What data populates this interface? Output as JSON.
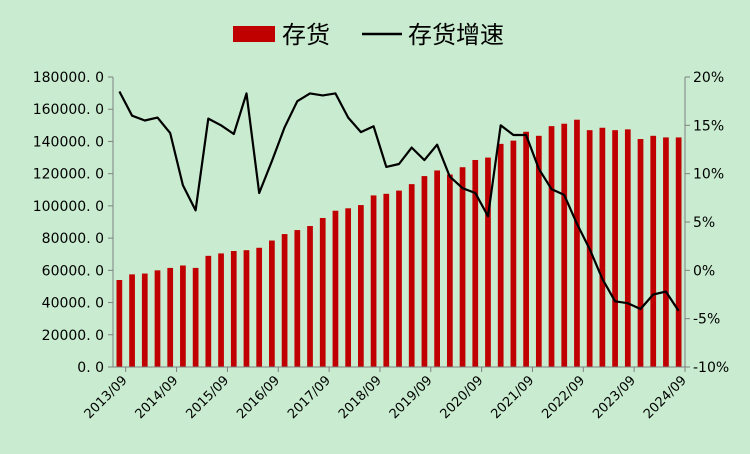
{
  "chart_data": {
    "type": "bar+line",
    "title": "",
    "legend": {
      "position": "top",
      "items": [
        {
          "label": "存货",
          "kind": "bar",
          "color": "#c00000"
        },
        {
          "label": "存货增速",
          "kind": "line",
          "color": "#000000"
        }
      ]
    },
    "x_tick_labels": [
      "2013/09",
      "2014/09",
      "2015/09",
      "2016/09",
      "2017/09",
      "2018/09",
      "2019/09",
      "2020/09",
      "2021/09",
      "2022/09",
      "2023/09",
      "2024/09"
    ],
    "x_tick_index": [
      0,
      4,
      8,
      12,
      16,
      20,
      24,
      28,
      32,
      36,
      40,
      44
    ],
    "periods": 45,
    "y_left": {
      "min": 0,
      "max": 180000,
      "step": 20000,
      "tick_labels": [
        "0. 0",
        "20000. 0",
        "40000. 0",
        "60000. 0",
        "80000. 0",
        "100000. 0",
        "120000. 0",
        "140000. 0",
        "160000. 0",
        "180000. 0"
      ]
    },
    "y_right": {
      "min": -10,
      "max": 20,
      "step": 5,
      "tick_labels": [
        "-10%",
        "-5%",
        "0%",
        "5%",
        "10%",
        "15%",
        "20%"
      ]
    },
    "series": [
      {
        "name": "存货",
        "type": "bar",
        "axis": "left",
        "color": "#c00000",
        "values": [
          54000,
          57500,
          58000,
          60000,
          61500,
          63000,
          61500,
          69000,
          70500,
          72000,
          72500,
          74000,
          78500,
          82500,
          85000,
          87500,
          92500,
          97000,
          98500,
          100500,
          106500,
          107500,
          109500,
          113500,
          118500,
          122000,
          119500,
          124000,
          128500,
          130000,
          138500,
          140500,
          146000,
          143500,
          149500,
          151000,
          153500,
          147000,
          148500,
          147000,
          147500,
          141500,
          143500,
          142500,
          142500
        ]
      },
      {
        "name": "存货增速",
        "type": "line",
        "axis": "right",
        "color": "#000000",
        "values": [
          18.5,
          16.0,
          15.5,
          15.8,
          14.2,
          8.8,
          6.2,
          15.7,
          15.0,
          14.1,
          18.3,
          8.0,
          11.3,
          14.8,
          17.5,
          18.3,
          18.1,
          18.3,
          15.8,
          14.3,
          14.9,
          10.7,
          11.0,
          12.7,
          11.4,
          13.0,
          9.7,
          8.5,
          8.0,
          5.6,
          15.0,
          14.0,
          14.0,
          10.5,
          8.4,
          7.8,
          4.8,
          2.2,
          -0.9,
          -3.2,
          -3.4,
          -4.0,
          -2.5,
          -2.2,
          -4.2
        ]
      }
    ]
  }
}
